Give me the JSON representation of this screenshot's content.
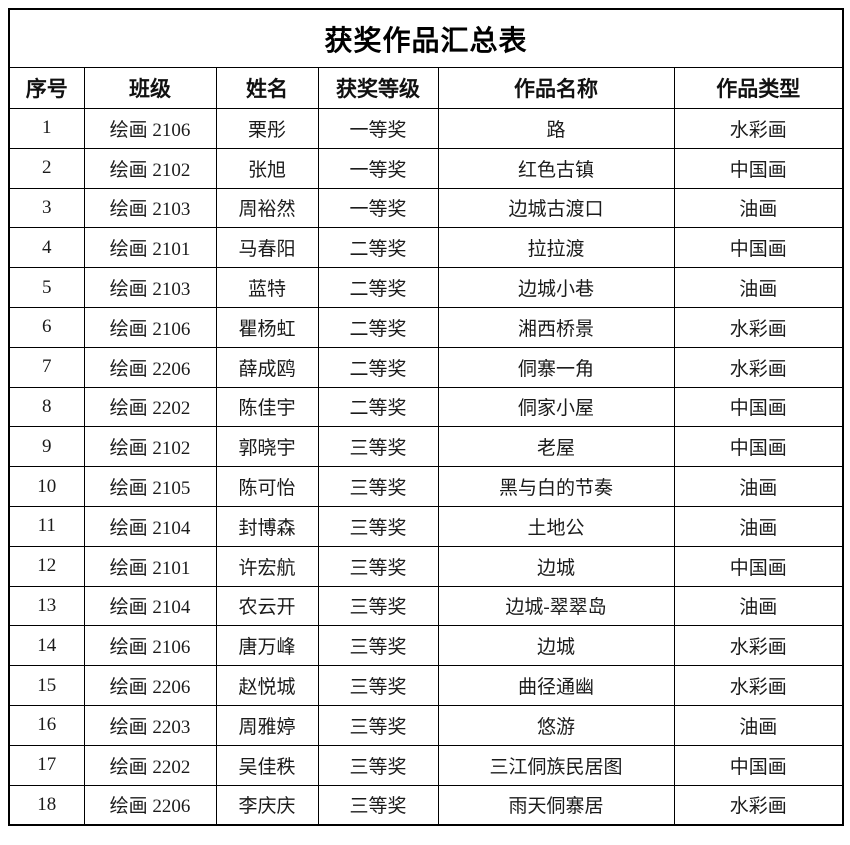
{
  "document": {
    "title": "获奖作品汇总表"
  },
  "table": {
    "columns": [
      {
        "key": "no",
        "label": "序号"
      },
      {
        "key": "class_name",
        "label": "班级"
      },
      {
        "key": "student_name",
        "label": "姓名"
      },
      {
        "key": "award_level",
        "label": "获奖等级"
      },
      {
        "key": "work_title",
        "label": "作品名称"
      },
      {
        "key": "work_type",
        "label": "作品类型"
      }
    ],
    "rows": [
      {
        "no": "1",
        "class_name": "绘画 2106",
        "student_name": "栗彤",
        "award_level": "一等奖",
        "work_title": "路",
        "work_type": "水彩画"
      },
      {
        "no": "2",
        "class_name": "绘画 2102",
        "student_name": "张旭",
        "award_level": "一等奖",
        "work_title": "红色古镇",
        "work_type": "中国画"
      },
      {
        "no": "3",
        "class_name": "绘画 2103",
        "student_name": "周裕然",
        "award_level": "一等奖",
        "work_title": "边城古渡口",
        "work_type": "油画"
      },
      {
        "no": "4",
        "class_name": "绘画 2101",
        "student_name": "马春阳",
        "award_level": "二等奖",
        "work_title": "拉拉渡",
        "work_type": "中国画"
      },
      {
        "no": "5",
        "class_name": "绘画 2103",
        "student_name": "蓝特",
        "award_level": "二等奖",
        "work_title": "边城小巷",
        "work_type": "油画"
      },
      {
        "no": "6",
        "class_name": "绘画 2106",
        "student_name": "瞿杨虹",
        "award_level": "二等奖",
        "work_title": "湘西桥景",
        "work_type": "水彩画"
      },
      {
        "no": "7",
        "class_name": "绘画 2206",
        "student_name": "薛成鸥",
        "award_level": "二等奖",
        "work_title": "侗寨一角",
        "work_type": "水彩画"
      },
      {
        "no": "8",
        "class_name": "绘画 2202",
        "student_name": "陈佳宇",
        "award_level": "二等奖",
        "work_title": "侗家小屋",
        "work_type": "中国画"
      },
      {
        "no": "9",
        "class_name": "绘画 2102",
        "student_name": "郭晓宇",
        "award_level": "三等奖",
        "work_title": "老屋",
        "work_type": "中国画"
      },
      {
        "no": "10",
        "class_name": "绘画 2105",
        "student_name": "陈可怡",
        "award_level": "三等奖",
        "work_title": "黑与白的节奏",
        "work_type": "油画"
      },
      {
        "no": "11",
        "class_name": "绘画 2104",
        "student_name": "封博森",
        "award_level": "三等奖",
        "work_title": "土地公",
        "work_type": "油画"
      },
      {
        "no": "12",
        "class_name": "绘画 2101",
        "student_name": "许宏航",
        "award_level": "三等奖",
        "work_title": "边城",
        "work_type": "中国画"
      },
      {
        "no": "13",
        "class_name": "绘画 2104",
        "student_name": "农云开",
        "award_level": "三等奖",
        "work_title": "边城-翠翠岛",
        "work_type": "油画"
      },
      {
        "no": "14",
        "class_name": "绘画 2106",
        "student_name": "唐万峰",
        "award_level": "三等奖",
        "work_title": "边城",
        "work_type": "水彩画"
      },
      {
        "no": "15",
        "class_name": "绘画 2206",
        "student_name": "赵悦城",
        "award_level": "三等奖",
        "work_title": "曲径通幽",
        "work_type": "水彩画"
      },
      {
        "no": "16",
        "class_name": "绘画 2203",
        "student_name": "周雅婷",
        "award_level": "三等奖",
        "work_title": "悠游",
        "work_type": "油画"
      },
      {
        "no": "17",
        "class_name": "绘画 2202",
        "student_name": "吴佳秩",
        "award_level": "三等奖",
        "work_title": "三江侗族民居图",
        "work_type": "中国画"
      },
      {
        "no": "18",
        "class_name": "绘画 2206",
        "student_name": "李庆庆",
        "award_level": "三等奖",
        "work_title": "雨天侗寨居",
        "work_type": "水彩画"
      }
    ]
  },
  "colors": {
    "border": "#000000",
    "text": "#1b1b1b",
    "background": "#ffffff"
  }
}
